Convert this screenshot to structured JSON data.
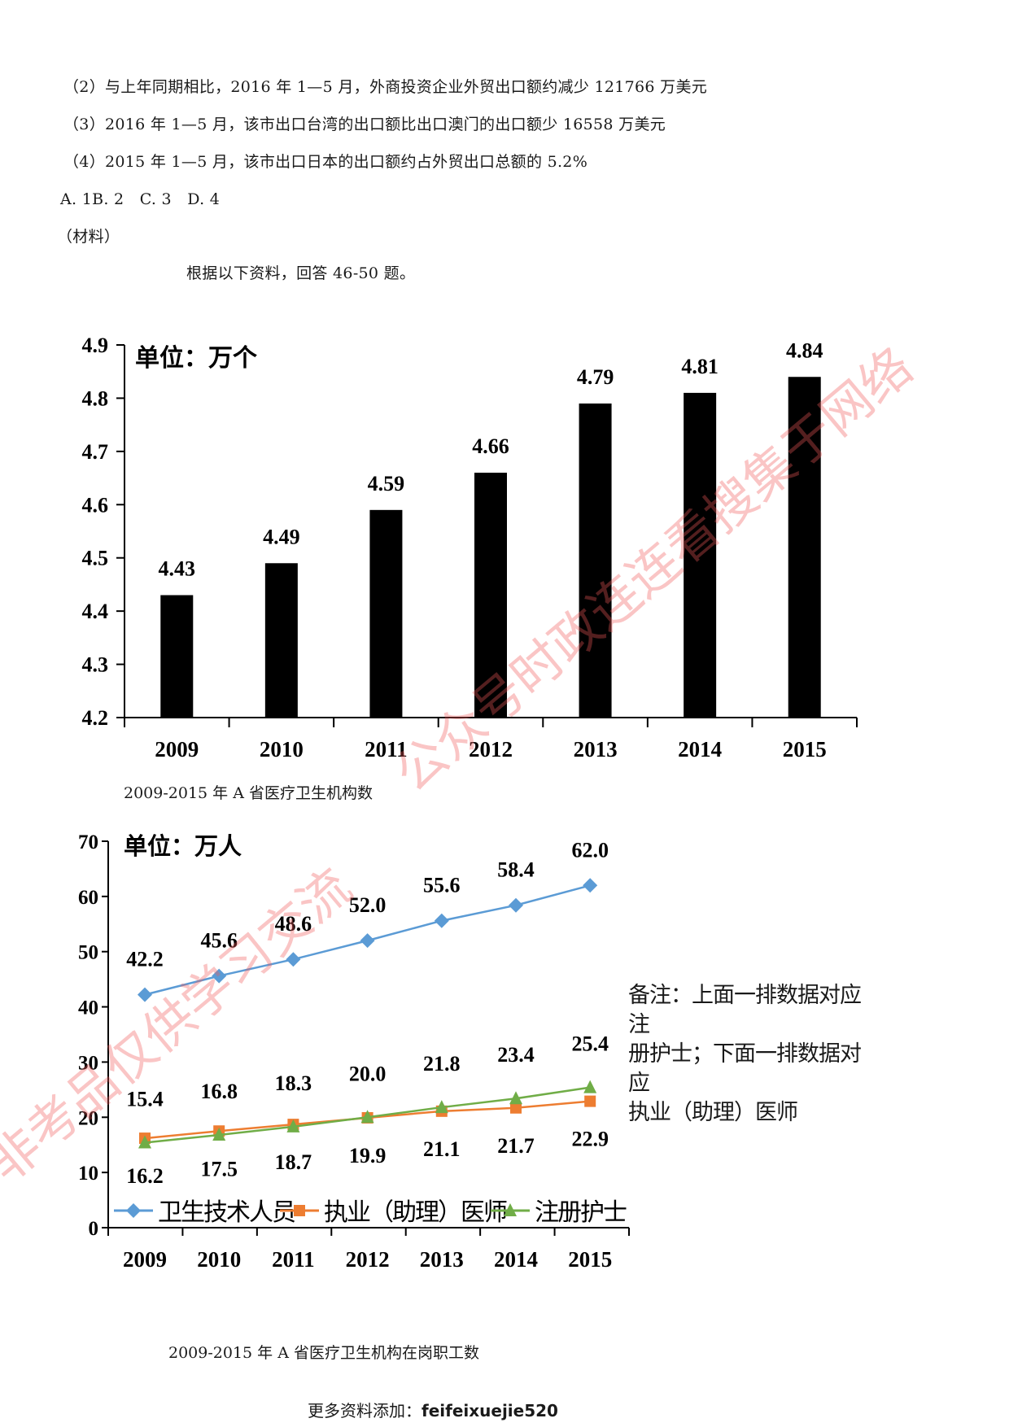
{
  "question": {
    "statements": [
      "（2）与上年同期相比，2016 年 1—5 月，外商投资企业外贸出口额约减少 121766 万美元",
      "（3）2016 年 1—5 月，该市出口台湾的出口额比出口澳门的出口额少 16558 万美元",
      "（4）2015 年 1—5 月，该市出口日本的出口额约占外贸出口总额的 5.2%"
    ],
    "options": "A. 1B. 2　C. 3　D. 4",
    "material_label": "（材料）",
    "instruction": "根据以下资料，回答 46-50 题。"
  },
  "captions": {
    "bar_chart": "2009-2015 年 A 省医疗卫生机构数",
    "line_chart": "2009-2015 年 A 省医疗卫生机构在岗职工数"
  },
  "footer": {
    "prefix": "更多资料添加：",
    "contact": "feifeixuejie520"
  },
  "watermarks": [
    "非考品仅供学习交流",
    "公众号时政连连看搜集于网络"
  ],
  "chart_data": [
    {
      "type": "bar",
      "title": "2009-2015 年 A 省医疗卫生机构数",
      "unit_label": "单位：万个",
      "categories": [
        "2009",
        "2010",
        "2011",
        "2012",
        "2013",
        "2014",
        "2015"
      ],
      "values": [
        4.43,
        4.49,
        4.59,
        4.66,
        4.79,
        4.81,
        4.84
      ],
      "value_labels": [
        "4.43",
        "4.49",
        "4.59",
        "4.66",
        "4.79",
        "4.81",
        "4.84"
      ],
      "xlabel": "",
      "ylabel": "",
      "ylim": [
        4.2,
        4.9
      ],
      "yticks": [
        "4.2",
        "4.3",
        "4.4",
        "4.5",
        "4.6",
        "4.7",
        "4.8",
        "4.9"
      ],
      "bar_color": "#000000",
      "grid": false
    },
    {
      "type": "line",
      "title": "2009-2015 年 A 省医疗卫生机构在岗职工数",
      "unit_label": "单位：万人",
      "categories": [
        "2009",
        "2010",
        "2011",
        "2012",
        "2013",
        "2014",
        "2015"
      ],
      "series": [
        {
          "name": "卫生技术人员",
          "marker": "diamond",
          "color": "#5b9bd5",
          "values": [
            42.2,
            45.6,
            48.6,
            52.0,
            55.6,
            58.4,
            62.0
          ],
          "labels": [
            "42.2",
            "45.6",
            "48.6",
            "52.0",
            "55.6",
            "58.4",
            "62.0"
          ]
        },
        {
          "name": "执业（助理）医师",
          "marker": "square",
          "color": "#ed7d31",
          "values": [
            16.2,
            17.5,
            18.7,
            19.9,
            21.1,
            21.7,
            22.9
          ],
          "labels": [
            "16.2",
            "17.5",
            "18.7",
            "19.9",
            "21.1",
            "21.7",
            "22.9"
          ]
        },
        {
          "name": "注册护士",
          "marker": "triangle",
          "color": "#70ad47",
          "values": [
            15.4,
            16.8,
            18.3,
            20.0,
            21.8,
            23.4,
            25.4
          ],
          "labels": [
            "15.4",
            "16.8",
            "18.3",
            "20.0",
            "21.8",
            "23.4",
            "25.4"
          ]
        }
      ],
      "xlabel": "",
      "ylabel": "",
      "ylim": [
        0,
        70
      ],
      "yticks": [
        "0",
        "10",
        "20",
        "30",
        "40",
        "50",
        "60",
        "70"
      ],
      "legend_position": "bottom-inside",
      "annotation": "备注：上面一排数据对应注册护士；下面一排数据对应执业（助理）医师",
      "annotation_lines": [
        "备注：上面一排数据对应注",
        "册护士；下面一排数据对应",
        "执业（助理）医师"
      ],
      "grid": false
    }
  ]
}
